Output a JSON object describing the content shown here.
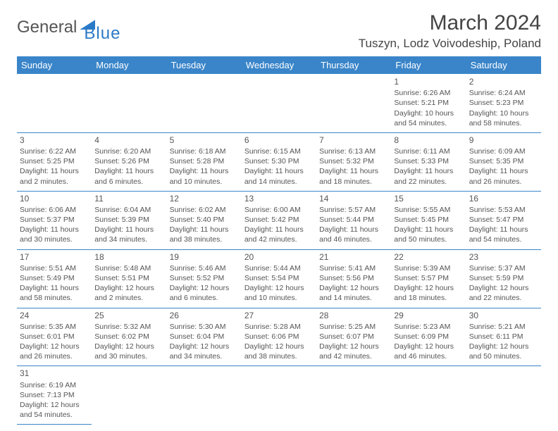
{
  "logo": {
    "text1": "General",
    "text2": "Blue"
  },
  "title": "March 2024",
  "location": "Tuszyn, Lodz Voivodeship, Poland",
  "header_bg": "#3a85c9",
  "weekdays": [
    "Sunday",
    "Monday",
    "Tuesday",
    "Wednesday",
    "Thursday",
    "Friday",
    "Saturday"
  ],
  "days": {
    "1": {
      "sunrise": "6:26 AM",
      "sunset": "5:21 PM",
      "daylight": "10 hours and 54 minutes."
    },
    "2": {
      "sunrise": "6:24 AM",
      "sunset": "5:23 PM",
      "daylight": "10 hours and 58 minutes."
    },
    "3": {
      "sunrise": "6:22 AM",
      "sunset": "5:25 PM",
      "daylight": "11 hours and 2 minutes."
    },
    "4": {
      "sunrise": "6:20 AM",
      "sunset": "5:26 PM",
      "daylight": "11 hours and 6 minutes."
    },
    "5": {
      "sunrise": "6:18 AM",
      "sunset": "5:28 PM",
      "daylight": "11 hours and 10 minutes."
    },
    "6": {
      "sunrise": "6:15 AM",
      "sunset": "5:30 PM",
      "daylight": "11 hours and 14 minutes."
    },
    "7": {
      "sunrise": "6:13 AM",
      "sunset": "5:32 PM",
      "daylight": "11 hours and 18 minutes."
    },
    "8": {
      "sunrise": "6:11 AM",
      "sunset": "5:33 PM",
      "daylight": "11 hours and 22 minutes."
    },
    "9": {
      "sunrise": "6:09 AM",
      "sunset": "5:35 PM",
      "daylight": "11 hours and 26 minutes."
    },
    "10": {
      "sunrise": "6:06 AM",
      "sunset": "5:37 PM",
      "daylight": "11 hours and 30 minutes."
    },
    "11": {
      "sunrise": "6:04 AM",
      "sunset": "5:39 PM",
      "daylight": "11 hours and 34 minutes."
    },
    "12": {
      "sunrise": "6:02 AM",
      "sunset": "5:40 PM",
      "daylight": "11 hours and 38 minutes."
    },
    "13": {
      "sunrise": "6:00 AM",
      "sunset": "5:42 PM",
      "daylight": "11 hours and 42 minutes."
    },
    "14": {
      "sunrise": "5:57 AM",
      "sunset": "5:44 PM",
      "daylight": "11 hours and 46 minutes."
    },
    "15": {
      "sunrise": "5:55 AM",
      "sunset": "5:45 PM",
      "daylight": "11 hours and 50 minutes."
    },
    "16": {
      "sunrise": "5:53 AM",
      "sunset": "5:47 PM",
      "daylight": "11 hours and 54 minutes."
    },
    "17": {
      "sunrise": "5:51 AM",
      "sunset": "5:49 PM",
      "daylight": "11 hours and 58 minutes."
    },
    "18": {
      "sunrise": "5:48 AM",
      "sunset": "5:51 PM",
      "daylight": "12 hours and 2 minutes."
    },
    "19": {
      "sunrise": "5:46 AM",
      "sunset": "5:52 PM",
      "daylight": "12 hours and 6 minutes."
    },
    "20": {
      "sunrise": "5:44 AM",
      "sunset": "5:54 PM",
      "daylight": "12 hours and 10 minutes."
    },
    "21": {
      "sunrise": "5:41 AM",
      "sunset": "5:56 PM",
      "daylight": "12 hours and 14 minutes."
    },
    "22": {
      "sunrise": "5:39 AM",
      "sunset": "5:57 PM",
      "daylight": "12 hours and 18 minutes."
    },
    "23": {
      "sunrise": "5:37 AM",
      "sunset": "5:59 PM",
      "daylight": "12 hours and 22 minutes."
    },
    "24": {
      "sunrise": "5:35 AM",
      "sunset": "6:01 PM",
      "daylight": "12 hours and 26 minutes."
    },
    "25": {
      "sunrise": "5:32 AM",
      "sunset": "6:02 PM",
      "daylight": "12 hours and 30 minutes."
    },
    "26": {
      "sunrise": "5:30 AM",
      "sunset": "6:04 PM",
      "daylight": "12 hours and 34 minutes."
    },
    "27": {
      "sunrise": "5:28 AM",
      "sunset": "6:06 PM",
      "daylight": "12 hours and 38 minutes."
    },
    "28": {
      "sunrise": "5:25 AM",
      "sunset": "6:07 PM",
      "daylight": "12 hours and 42 minutes."
    },
    "29": {
      "sunrise": "5:23 AM",
      "sunset": "6:09 PM",
      "daylight": "12 hours and 46 minutes."
    },
    "30": {
      "sunrise": "5:21 AM",
      "sunset": "6:11 PM",
      "daylight": "12 hours and 50 minutes."
    },
    "31": {
      "sunrise": "6:19 AM",
      "sunset": "7:13 PM",
      "daylight": "12 hours and 54 minutes."
    }
  },
  "labels": {
    "sunrise": "Sunrise: ",
    "sunset": "Sunset: ",
    "daylight": "Daylight: "
  },
  "layout": {
    "rows": [
      [
        null,
        null,
        null,
        null,
        null,
        "1",
        "2"
      ],
      [
        "3",
        "4",
        "5",
        "6",
        "7",
        "8",
        "9"
      ],
      [
        "10",
        "11",
        "12",
        "13",
        "14",
        "15",
        "16"
      ],
      [
        "17",
        "18",
        "19",
        "20",
        "21",
        "22",
        "23"
      ],
      [
        "24",
        "25",
        "26",
        "27",
        "28",
        "29",
        "30"
      ],
      [
        "31",
        null,
        null,
        null,
        null,
        null,
        null
      ]
    ]
  }
}
